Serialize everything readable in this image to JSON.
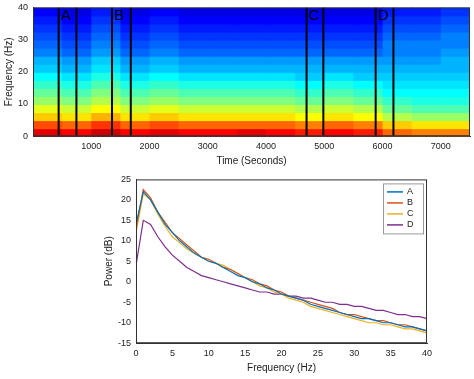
{
  "chart_data": [
    {
      "type": "heatmap",
      "x_label": "Time (Seconds)",
      "y_label": "Frequency (Hz)",
      "xlim": [
        0,
        7500
      ],
      "xticks": [
        1000,
        2000,
        3000,
        4000,
        5000,
        6000,
        7000
      ],
      "ylim": [
        0,
        40
      ],
      "yticks": [
        0,
        10,
        20,
        30,
        40
      ],
      "grid": false,
      "cells": {
        "x_bins": [
          0,
          500,
          1000,
          1500,
          2000,
          2500,
          3000,
          3500,
          4000,
          4500,
          5000,
          5500,
          6000,
          6500,
          7000,
          7500
        ],
        "y_bins": [
          0,
          2.5,
          5,
          7.5,
          10,
          12.5,
          15,
          17.5,
          20,
          22.5,
          25,
          27.5,
          30,
          32.5,
          35,
          37.5,
          40
        ],
        "z": [
          [
            21,
            20,
            22,
            20,
            21,
            20,
            20,
            21,
            20,
            19,
            20,
            19,
            16,
            15,
            15
          ],
          [
            17,
            16,
            18,
            16,
            17,
            16,
            16,
            16,
            16,
            15,
            16,
            15,
            12,
            11,
            11
          ],
          [
            12,
            11,
            13,
            11,
            12,
            11,
            11,
            11,
            11,
            10,
            11,
            10,
            7,
            6,
            6
          ],
          [
            9,
            8,
            10,
            8,
            9,
            8,
            8,
            8,
            8,
            7,
            8,
            7,
            4,
            3,
            3
          ],
          [
            6,
            5,
            7,
            5,
            6,
            5,
            5,
            5,
            5,
            4,
            5,
            4,
            2,
            1,
            1
          ],
          [
            4,
            3,
            5,
            3,
            4,
            3,
            3,
            3,
            3,
            2,
            3,
            2,
            0,
            0,
            0
          ],
          [
            2,
            1,
            3,
            1,
            2,
            1,
            1,
            1,
            1,
            0,
            1,
            0,
            -1,
            -1,
            -1
          ],
          [
            0,
            -1,
            1,
            -1,
            0,
            -1,
            -1,
            -1,
            -1,
            -2,
            -1,
            -2,
            -2,
            -2,
            -2
          ],
          [
            -2,
            -3,
            -1,
            -3,
            -2,
            -3,
            -3,
            -3,
            -3,
            -3,
            -3,
            -3,
            -3,
            -3,
            -3
          ],
          [
            -3,
            -4,
            -2,
            -4,
            -3,
            -4,
            -4,
            -4,
            -4,
            -4,
            -4,
            -4,
            -4,
            -4,
            -3
          ],
          [
            -5,
            -6,
            -4,
            -6,
            -5,
            -6,
            -6,
            -6,
            -6,
            -6,
            -6,
            -6,
            -5,
            -5,
            -4
          ],
          [
            -6,
            -7,
            -5,
            -7,
            -6,
            -7,
            -7,
            -7,
            -7,
            -7,
            -7,
            -7,
            -5,
            -5,
            -5
          ],
          [
            -7,
            -8,
            -6,
            -8,
            -7,
            -8,
            -8,
            -8,
            -8,
            -8,
            -8,
            -8,
            -6,
            -6,
            -5
          ],
          [
            -8,
            -9,
            -7,
            -9,
            -8,
            -9,
            -9,
            -9,
            -9,
            -9,
            -9,
            -9,
            -7,
            -7,
            -6
          ],
          [
            -9,
            -10,
            -8,
            -10,
            -9,
            -10,
            -10,
            -10,
            -10,
            -10,
            -10,
            -10,
            -8,
            -8,
            -7
          ],
          [
            -10,
            -11,
            -9,
            -11,
            -10,
            -11,
            -11,
            -11,
            -11,
            -11,
            -11,
            -11,
            -9,
            -9,
            -8
          ]
        ],
        "zlim": [
          -15,
          25
        ]
      },
      "annotations": [
        {
          "label": "A",
          "x": [
            440,
            745
          ]
        },
        {
          "label": "B",
          "x": [
            1356,
            1678
          ]
        },
        {
          "label": "C",
          "x": [
            4695,
            4983
          ]
        },
        {
          "label": "D",
          "x": [
            5881,
            6186
          ]
        }
      ]
    },
    {
      "type": "line",
      "x_label": "Frequency (Hz)",
      "y_label": "Power (dB)",
      "xlim": [
        0,
        40
      ],
      "xticks": [
        0,
        5,
        10,
        15,
        20,
        25,
        30,
        35,
        40
      ],
      "ylim": [
        -15,
        25
      ],
      "yticks": [
        -15,
        -10,
        -5,
        0,
        5,
        10,
        15,
        20,
        25
      ],
      "grid": false,
      "legend": "upper right",
      "x": [
        0,
        1,
        2,
        3,
        4,
        5,
        6,
        7,
        8,
        9,
        10,
        11,
        12,
        13,
        14,
        15,
        16,
        17,
        18,
        19,
        20,
        21,
        22,
        23,
        24,
        25,
        26,
        27,
        28,
        29,
        30,
        31,
        32,
        33,
        34,
        35,
        36,
        37,
        38,
        39,
        40
      ],
      "series": [
        {
          "name": "A",
          "color": "#0072BD",
          "values": [
            14,
            22,
            20,
            17,
            14,
            12,
            10,
            8.5,
            7,
            6,
            5,
            4.5,
            3.5,
            2.5,
            1.5,
            1,
            0,
            -0.5,
            -1.5,
            -2,
            -3,
            -3.5,
            -4,
            -4.5,
            -5.5,
            -6,
            -6.5,
            -7,
            -7.5,
            -8,
            -8.5,
            -9,
            -9,
            -9.5,
            -10,
            -10,
            -10.5,
            -11,
            -11,
            -11.5,
            -12
          ]
        },
        {
          "name": "B",
          "color": "#D95319",
          "values": [
            13,
            22.5,
            20.5,
            17,
            14.5,
            12,
            10.5,
            9,
            7.5,
            6,
            5.5,
            4.5,
            3.5,
            3,
            2,
            1,
            0.5,
            -0.5,
            -1,
            -2,
            -2.5,
            -3.5,
            -4,
            -4.5,
            -5,
            -5.5,
            -6,
            -6.5,
            -7.5,
            -8,
            -8,
            -8.5,
            -9,
            -9.5,
            -9.5,
            -10,
            -10.5,
            -10.5,
            -11,
            -11.5,
            -12
          ]
        },
        {
          "name": "C",
          "color": "#EDB120",
          "values": [
            12,
            21.5,
            20,
            16.5,
            13.5,
            11,
            9.5,
            8,
            7,
            6,
            5,
            4.5,
            4,
            3,
            2,
            1,
            0,
            -1,
            -1.5,
            -2.5,
            -3,
            -4,
            -4.5,
            -5,
            -6,
            -6.5,
            -7,
            -7.5,
            -8,
            -8.5,
            -9,
            -9.5,
            -10,
            -10,
            -10.5,
            -10.5,
            -11,
            -11.5,
            -11.5,
            -12,
            -12.5
          ]
        },
        {
          "name": "D",
          "color": "#7E2F8E",
          "values": [
            4,
            15,
            14,
            11,
            8.5,
            6.5,
            5,
            3.5,
            2.5,
            1.5,
            1,
            0.5,
            0,
            -0.5,
            -1,
            -1.5,
            -2,
            -2.5,
            -2.5,
            -3,
            -3,
            -3.5,
            -3.5,
            -4,
            -4,
            -4.5,
            -5,
            -5,
            -5.5,
            -5.5,
            -6,
            -6,
            -6.5,
            -7,
            -7,
            -7.5,
            -8,
            -8,
            -8.5,
            -8.5,
            -9
          ]
        }
      ]
    }
  ]
}
